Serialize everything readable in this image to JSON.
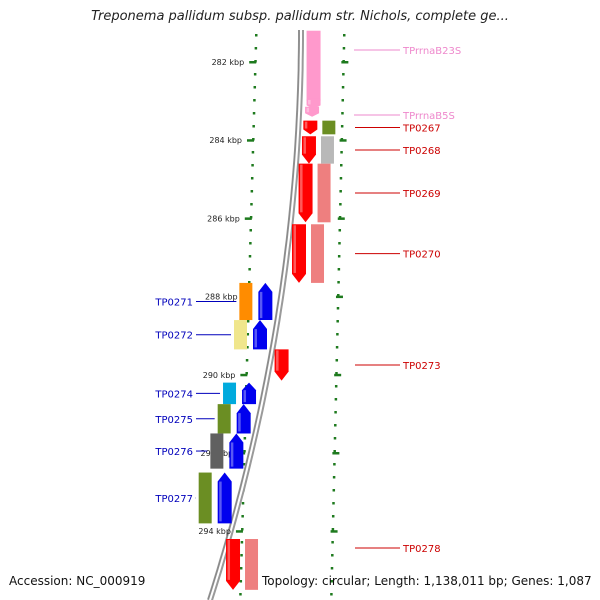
{
  "title": "Treponema pallidum subsp. pallidum str. Nichols, complete ge...",
  "footer": {
    "accession": "Accession: NC_000919",
    "summary": "Topology: circular; Length: 1,138,011 bp; Genes: 1,087"
  },
  "colors": {
    "ruler_tick": "#1e7a1e",
    "backbone": "#888888",
    "rrna_label": "#ee88cc",
    "forward_label": "#cc0000",
    "reverse_label": "#0000bb",
    "rrna_fill": "#ff99cc",
    "gene_red": "#ff0000",
    "gene_blue": "#0000ee"
  },
  "ruler": {
    "unit": "kbp",
    "ticks": [
      {
        "kbp": 282,
        "label": "282 kbp"
      },
      {
        "kbp": 284,
        "label": "284 kbp"
      },
      {
        "kbp": 286,
        "label": "286 kbp"
      },
      {
        "kbp": 288,
        "label": "288 kbp"
      },
      {
        "kbp": 290,
        "label": "290 kbp"
      },
      {
        "kbp": 292,
        "label": "292 kbp"
      },
      {
        "kbp": 294,
        "label": "294 kbp"
      }
    ]
  },
  "features": [
    {
      "label": "TPrrnaB23S",
      "strand": "+",
      "type": "rRNA",
      "color": "#ff99cc",
      "start_kbp": 281.2,
      "end_kbp": 283.2,
      "cog_color": ""
    },
    {
      "label": "TPrrnaB5S",
      "strand": "+",
      "type": "rRNA",
      "color": "#ff99cc",
      "start_kbp": 283.2,
      "end_kbp": 283.4,
      "cog_color": ""
    },
    {
      "label": "TP0267",
      "strand": "+",
      "type": "gene",
      "color": "#ff0000",
      "start_kbp": 283.5,
      "end_kbp": 283.85,
      "cog_color": "#6b8e23"
    },
    {
      "label": "TP0268",
      "strand": "+",
      "type": "gene",
      "color": "#ff0000",
      "start_kbp": 283.9,
      "end_kbp": 284.6,
      "cog_color": "#b8b8b8"
    },
    {
      "label": "TP0269",
      "strand": "+",
      "type": "gene",
      "color": "#ff0000",
      "start_kbp": 284.6,
      "end_kbp": 286.1,
      "cog_color": "#ee7f7f"
    },
    {
      "label": "TP0270",
      "strand": "+",
      "type": "gene",
      "color": "#ff0000",
      "start_kbp": 286.15,
      "end_kbp": 287.65,
      "cog_color": "#ee7f7f"
    },
    {
      "label": "TP0271",
      "strand": "-",
      "type": "gene",
      "color": "#0000ee",
      "start_kbp": 287.65,
      "end_kbp": 288.6,
      "cog_color": "#ff8c00"
    },
    {
      "label": "TP0272",
      "strand": "-",
      "type": "gene",
      "color": "#0000ee",
      "start_kbp": 288.6,
      "end_kbp": 289.35,
      "cog_color": "#f0e68c"
    },
    {
      "label": "TP0273",
      "strand": "+",
      "type": "gene",
      "color": "#ff0000",
      "start_kbp": 289.35,
      "end_kbp": 290.15,
      "cog_color": ""
    },
    {
      "label": "TP0274",
      "strand": "-",
      "type": "gene",
      "color": "#0000ee",
      "start_kbp": 290.2,
      "end_kbp": 290.75,
      "cog_color": "#00aadd"
    },
    {
      "label": "TP0275",
      "strand": "-",
      "type": "gene",
      "color": "#0000ee",
      "start_kbp": 290.75,
      "end_kbp": 291.5,
      "cog_color": "#6b8e23"
    },
    {
      "label": "TP0276",
      "strand": "-",
      "type": "gene",
      "color": "#0000ee",
      "start_kbp": 291.5,
      "end_kbp": 292.4,
      "cog_color": "#606060"
    },
    {
      "label": "TP0277",
      "strand": "-",
      "type": "gene",
      "color": "#0000ee",
      "start_kbp": 292.5,
      "end_kbp": 293.8,
      "cog_color": "#6b8e23"
    },
    {
      "label": "TP0278",
      "strand": "+",
      "type": "gene",
      "color": "#ff0000",
      "start_kbp": 294.2,
      "end_kbp": 295.5,
      "cog_color": "#ee7f7f"
    }
  ]
}
